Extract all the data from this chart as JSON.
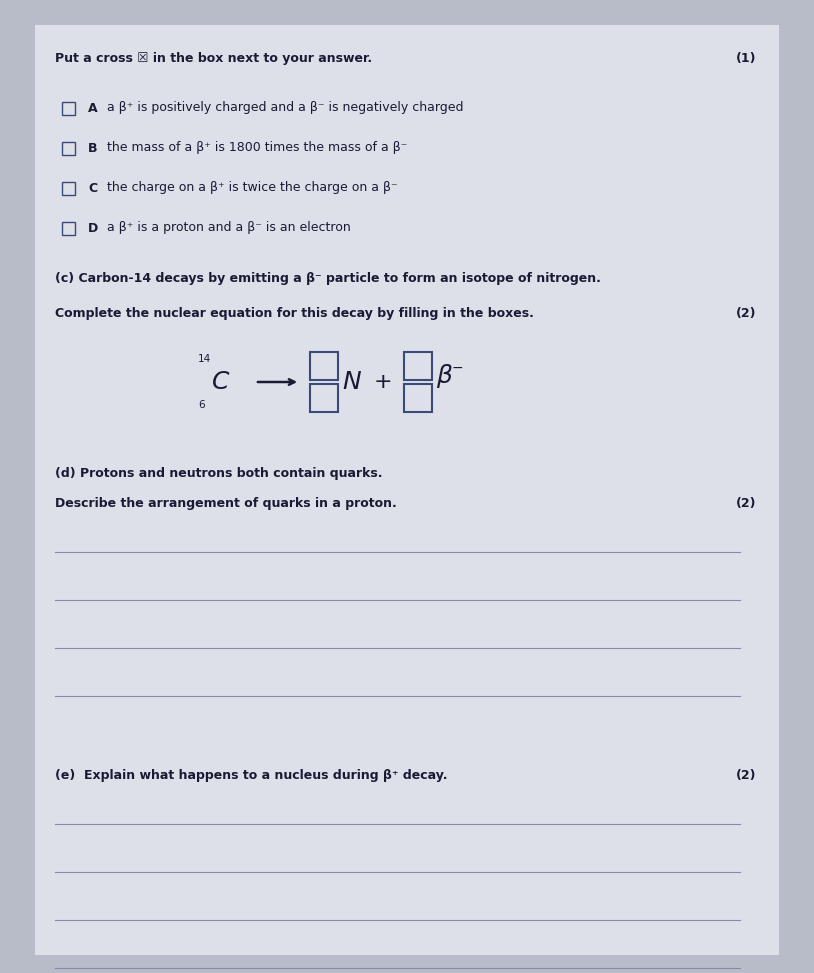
{
  "background_color": "#b8bcc8",
  "paper_color": "#dde0e8",
  "title_text": "Put a cross ☒ in the box next to your answer.",
  "mark1": "(1)",
  "mark2": "(2)",
  "mark2b": "(2)",
  "mark2c": "(2)",
  "options": [
    {
      "label": "A",
      "text": "a β⁺ is positively charged and a β⁻ is negatively charged",
      "crossed": false
    },
    {
      "label": "B",
      "text": "the mass of a β⁺ is 1800 times the mass of a β⁻",
      "crossed": false
    },
    {
      "label": "C",
      "text": "the charge on a β⁺ is twice the charge on a β⁻",
      "crossed": false
    },
    {
      "label": "D",
      "text": "a β⁺ is a proton and a β⁻ is an electron",
      "crossed": false
    }
  ],
  "part_c_header": "(c) Carbon-14 decays by emitting a β⁻ particle to form an isotope of nitrogen.",
  "part_c_instruction": "Complete the nuclear equation for this decay by filling in the boxes.",
  "part_d_header": "(d) Protons and neutrons both contain quarks.",
  "part_d_instruction": "Describe the arrangement of quarks in a proton.",
  "part_e_header": "(e)  Explain what happens to a nucleus during β⁺ decay.",
  "answer_lines_d": 4,
  "answer_lines_e": 5,
  "text_color": "#1a1a35",
  "box_color": "#3a4a7a",
  "line_color": "#8888aa"
}
